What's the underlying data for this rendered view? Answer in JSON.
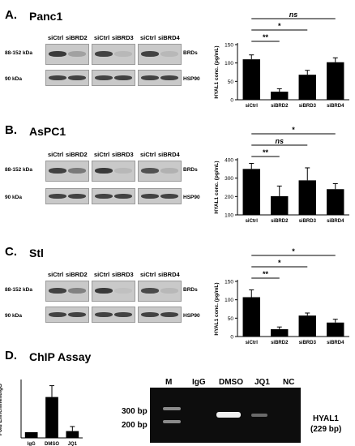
{
  "panels": [
    {
      "letter": "A.",
      "name": "Panc1",
      "lanes": [
        "siCtrl",
        "siBRD2",
        "siCtrl",
        "siBRD3",
        "siCtrl",
        "siBRD4"
      ],
      "left_labels": [
        "88-152 kDa",
        "90 kDa"
      ],
      "right_labels": [
        "BRDs",
        "HSP90"
      ]
    },
    {
      "letter": "B.",
      "name": "AsPC1",
      "lanes": [
        "siCtrl",
        "siBRD2",
        "siCtrl",
        "siBRD3",
        "siCtrl",
        "siBRD4"
      ],
      "left_labels": [
        "88-152 kDa",
        "90 kDa"
      ],
      "right_labels": [
        "BRDs",
        "HSP90"
      ]
    },
    {
      "letter": "C.",
      "name": "Stl",
      "lanes": [
        "siCtrl",
        "siBRD2",
        "siCtrl",
        "siBRD3",
        "siCtrl",
        "siBRD4"
      ],
      "left_labels": [
        "88-152 kDa",
        "90 kDa"
      ],
      "right_labels": [
        "BRDs",
        "HSP90"
      ]
    }
  ],
  "panel_d": {
    "letter": "D.",
    "title": "ChIP Assay",
    "gel_lanes": [
      "M",
      "IgG",
      "DMSO",
      "JQ1",
      "NC"
    ],
    "markers": [
      "300 bp",
      "200 bp"
    ],
    "gene_label": "HYAL1",
    "product_size": "(229 bp)"
  },
  "chart_data": [
    {
      "type": "bar",
      "categories": [
        "siCtrl",
        "siBRD2",
        "siBRD3",
        "siBRD4"
      ],
      "values": [
        110,
        22,
        68,
        102
      ],
      "errors": [
        12,
        8,
        12,
        12
      ],
      "ylabel": "HYAL1 conc. (pg/mL)",
      "ylim": [
        0,
        150
      ],
      "yticks": [
        0,
        50,
        100,
        150
      ],
      "significance": [
        {
          "from": "siCtrl",
          "to": "siBRD2",
          "label": "**"
        },
        {
          "from": "siCtrl",
          "to": "siBRD3",
          "label": "*"
        },
        {
          "from": "siCtrl",
          "to": "siBRD4",
          "label": "ns"
        }
      ]
    },
    {
      "type": "bar",
      "categories": [
        "siCtrl",
        "siBRD2",
        "siBRD3",
        "siBRD4"
      ],
      "values": [
        350,
        202,
        288,
        240
      ],
      "errors": [
        30,
        55,
        68,
        30
      ],
      "ylabel": "HYAL1 conc. (pg/mL)",
      "ylim": [
        100,
        400
      ],
      "yticks": [
        100,
        200,
        300,
        400
      ],
      "significance": [
        {
          "from": "siCtrl",
          "to": "siBRD2",
          "label": "**"
        },
        {
          "from": "siCtrl",
          "to": "siBRD3",
          "label": "ns"
        },
        {
          "from": "siCtrl",
          "to": "siBRD4",
          "label": "*"
        }
      ]
    },
    {
      "type": "bar",
      "categories": [
        "siCtrl",
        "siBRD2",
        "siBRD3",
        "siBRD4"
      ],
      "values": [
        107,
        20,
        57,
        38
      ],
      "errors": [
        20,
        6,
        7,
        9
      ],
      "ylabel": "HYAL1 conc. (pg/mL)",
      "ylim": [
        0,
        150
      ],
      "yticks": [
        0,
        50,
        100,
        150
      ],
      "significance": [
        {
          "from": "siCtrl",
          "to": "siBRD2",
          "label": "**"
        },
        {
          "from": "siCtrl",
          "to": "siBRD3",
          "label": "*"
        },
        {
          "from": "siCtrl",
          "to": "siBRD4",
          "label": "*"
        }
      ]
    },
    {
      "type": "bar",
      "categories": [
        "IgG",
        "DMSO",
        "JQ1"
      ],
      "values": [
        1,
        7.2,
        1.2
      ],
      "errors": [
        0,
        2.0,
        0.8
      ],
      "ylabel": "Fold Enrichment/IgG",
      "ylim": [
        0,
        10
      ]
    }
  ]
}
